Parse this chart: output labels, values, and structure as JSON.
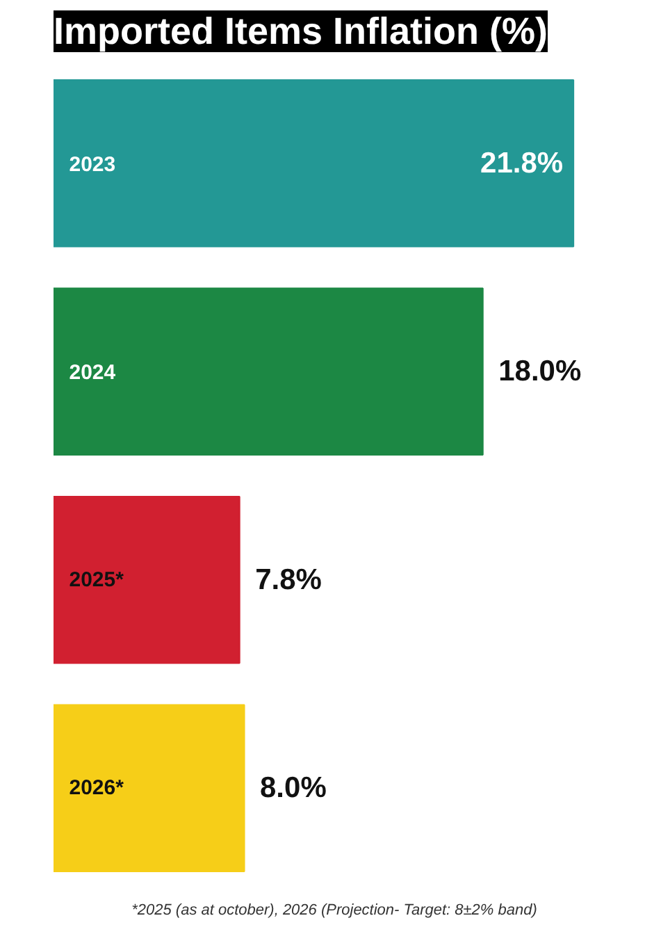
{
  "chart_data": {
    "type": "bar",
    "orientation": "horizontal",
    "title": "Imported Items Inflation (%)",
    "categories": [
      "2023",
      "2024",
      "2025*",
      "2026*"
    ],
    "values": [
      21.8,
      18.0,
      7.8,
      8.0
    ],
    "colors": [
      "#239895",
      "#1c8844",
      "#d12030",
      "#f6ce18"
    ],
    "value_labels": [
      "21.8%",
      "18.0%",
      "7.8%",
      "8.0%"
    ],
    "annotations": [
      "*2025 (as at october), 2026 (Projection- Target: 8±2% band)"
    ]
  }
}
